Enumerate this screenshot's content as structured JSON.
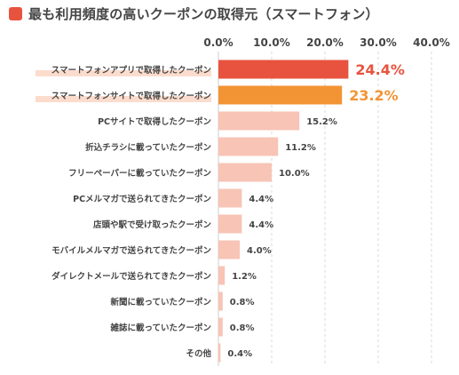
{
  "title": "最も利用頻度の高いクーポンの取得元（スマートフォン）",
  "colors": {
    "accent": "#e8533f",
    "second": "#f39434",
    "light": "#f7c4b6",
    "highlight_band": "#fbdccd",
    "text": "#444444",
    "grid": "#d9d9d9"
  },
  "chart_data": {
    "type": "bar",
    "orientation": "horizontal",
    "title": "最も利用頻度の高いクーポンの取得元（スマートフォン）",
    "xlim": [
      0,
      40
    ],
    "ticks": [
      "0.0%",
      "10.0%",
      "20.0%",
      "30.0%",
      "40.0%"
    ],
    "tick_values": [
      0,
      10,
      20,
      30,
      40
    ],
    "grid": true,
    "categories": [
      "スマートフォンアプリで取得したクーポン",
      "スマートフォンサイトで取得したクーポン",
      "PCサイトで取得したクーポン",
      "折込チラシに載っていたクーポン",
      "フリーペーパーに載っていたクーポン",
      "PCメルマガで送られてきたクーポン",
      "店頭や駅で受け取ったクーポン",
      "モバイルメルマガで送られてきたクーポン",
      "ダイレクトメールで送られてきたクーポン",
      "新聞に載っていたクーポン",
      "雑誌に載っていたクーポン",
      "その他"
    ],
    "values": [
      24.4,
      23.2,
      15.2,
      11.2,
      10.0,
      4.4,
      4.4,
      4.0,
      1.2,
      0.8,
      0.8,
      0.4
    ],
    "labels": [
      "24.4%",
      "23.2%",
      "15.2%",
      "11.2%",
      "10.0%",
      "4.4%",
      "4.4%",
      "4.0%",
      "1.2%",
      "0.8%",
      "0.8%",
      "0.4%"
    ],
    "highlighted": [
      0,
      1
    ]
  }
}
